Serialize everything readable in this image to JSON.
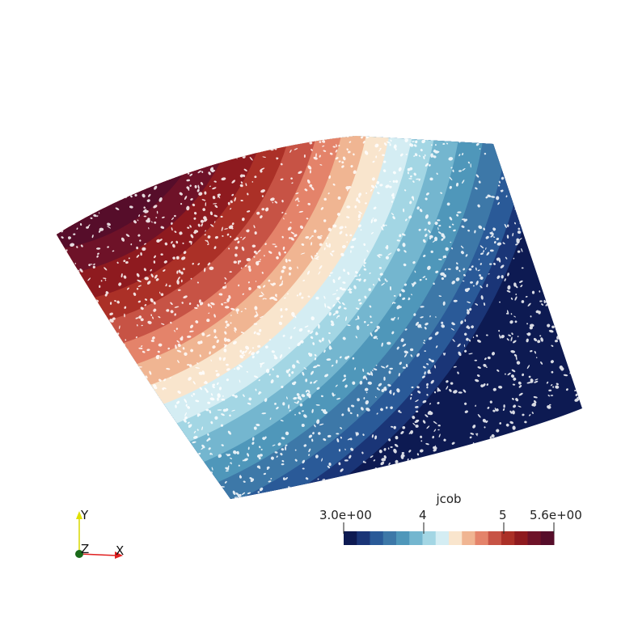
{
  "scalar_bar": {
    "title": "jcob",
    "tick_labels": [
      "3.0e+00",
      "4",
      "5",
      "5.6e+00"
    ],
    "colors": [
      "#0d1a52",
      "#1a3577",
      "#2a5a98",
      "#3d78a8",
      "#4f97ba",
      "#74b6cf",
      "#a3d6e4",
      "#d4edf3",
      "#f9e5cd",
      "#f0b592",
      "#e4836a",
      "#c75345",
      "#ab3027",
      "#8e1a1f",
      "#6e1228",
      "#560d2a"
    ]
  },
  "axes": {
    "y_label": "Y",
    "z_label": "Z",
    "x_label": "X"
  }
}
